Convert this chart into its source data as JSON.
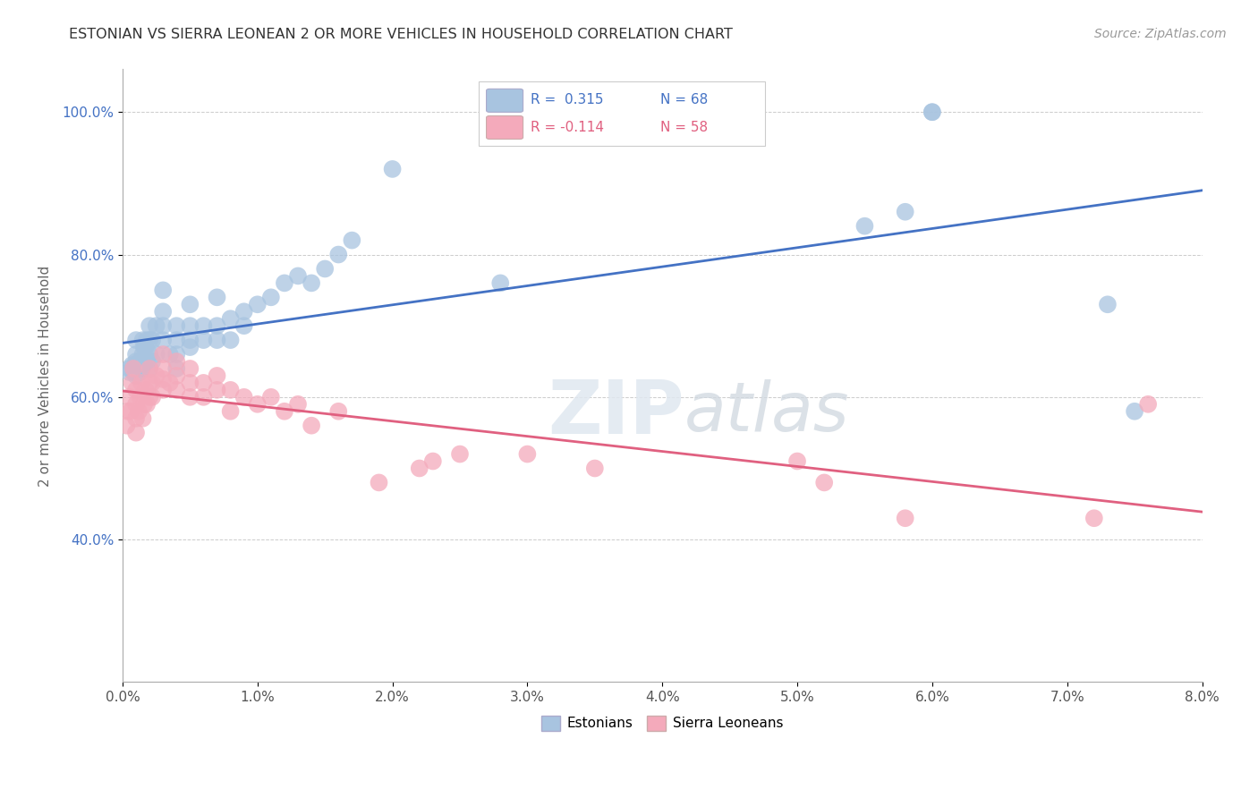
{
  "title": "ESTONIAN VS SIERRA LEONEAN 2 OR MORE VEHICLES IN HOUSEHOLD CORRELATION CHART",
  "source": "Source: ZipAtlas.com",
  "ylabel": "2 or more Vehicles in Household",
  "xlim": [
    0.0,
    0.08
  ],
  "ylim": [
    0.2,
    1.06
  ],
  "xticks": [
    0.0,
    0.01,
    0.02,
    0.03,
    0.04,
    0.05,
    0.06,
    0.07,
    0.08
  ],
  "xticklabels": [
    "0.0%",
    "1.0%",
    "2.0%",
    "3.0%",
    "4.0%",
    "5.0%",
    "6.0%",
    "7.0%",
    "8.0%"
  ],
  "yticks": [
    0.4,
    0.6,
    0.8,
    1.0
  ],
  "yticklabels": [
    "40.0%",
    "60.0%",
    "80.0%",
    "100.0%"
  ],
  "R_estonian": 0.315,
  "N_estonian": 68,
  "R_sierra": -0.114,
  "N_sierra": 58,
  "blue_color": "#A8C4E0",
  "pink_color": "#F4AABB",
  "blue_line_color": "#4472C4",
  "pink_line_color": "#E06080",
  "watermark": "ZIPatlas",
  "estonian_x": [
    0.0005,
    0.0005,
    0.0007,
    0.0008,
    0.0009,
    0.001,
    0.001,
    0.001,
    0.001,
    0.001,
    0.0012,
    0.0013,
    0.0013,
    0.0015,
    0.0015,
    0.0015,
    0.0016,
    0.0016,
    0.0017,
    0.0017,
    0.0018,
    0.0018,
    0.002,
    0.002,
    0.002,
    0.002,
    0.0022,
    0.0022,
    0.0025,
    0.0025,
    0.003,
    0.003,
    0.003,
    0.003,
    0.0035,
    0.004,
    0.004,
    0.004,
    0.004,
    0.005,
    0.005,
    0.005,
    0.005,
    0.006,
    0.006,
    0.007,
    0.007,
    0.007,
    0.008,
    0.008,
    0.009,
    0.009,
    0.01,
    0.011,
    0.012,
    0.013,
    0.014,
    0.015,
    0.016,
    0.017,
    0.02,
    0.028,
    0.055,
    0.058,
    0.06,
    0.06,
    0.073,
    0.075
  ],
  "estonian_y": [
    0.635,
    0.64,
    0.645,
    0.635,
    0.64,
    0.63,
    0.64,
    0.65,
    0.66,
    0.68,
    0.64,
    0.635,
    0.65,
    0.64,
    0.66,
    0.68,
    0.65,
    0.67,
    0.65,
    0.67,
    0.65,
    0.68,
    0.64,
    0.66,
    0.68,
    0.7,
    0.65,
    0.68,
    0.66,
    0.7,
    0.68,
    0.7,
    0.72,
    0.75,
    0.66,
    0.64,
    0.66,
    0.68,
    0.7,
    0.67,
    0.68,
    0.7,
    0.73,
    0.68,
    0.7,
    0.68,
    0.7,
    0.74,
    0.68,
    0.71,
    0.7,
    0.72,
    0.73,
    0.74,
    0.76,
    0.77,
    0.76,
    0.78,
    0.8,
    0.82,
    0.92,
    0.76,
    0.84,
    0.86,
    1.0,
    1.0,
    0.73,
    0.58
  ],
  "sierra_x": [
    0.0003,
    0.0004,
    0.0005,
    0.0006,
    0.0007,
    0.0008,
    0.001,
    0.001,
    0.001,
    0.001,
    0.0012,
    0.0013,
    0.0014,
    0.0015,
    0.0016,
    0.0017,
    0.0018,
    0.002,
    0.002,
    0.002,
    0.0022,
    0.0022,
    0.0025,
    0.003,
    0.003,
    0.003,
    0.003,
    0.0035,
    0.004,
    0.004,
    0.004,
    0.005,
    0.005,
    0.005,
    0.006,
    0.006,
    0.007,
    0.007,
    0.008,
    0.008,
    0.009,
    0.01,
    0.011,
    0.012,
    0.013,
    0.014,
    0.016,
    0.019,
    0.022,
    0.023,
    0.025,
    0.03,
    0.035,
    0.05,
    0.052,
    0.058,
    0.072,
    0.076
  ],
  "sierra_y": [
    0.56,
    0.58,
    0.6,
    0.58,
    0.62,
    0.64,
    0.55,
    0.57,
    0.59,
    0.61,
    0.58,
    0.6,
    0.62,
    0.57,
    0.59,
    0.61,
    0.59,
    0.6,
    0.62,
    0.64,
    0.6,
    0.62,
    0.63,
    0.61,
    0.625,
    0.64,
    0.66,
    0.62,
    0.61,
    0.63,
    0.65,
    0.6,
    0.62,
    0.64,
    0.6,
    0.62,
    0.61,
    0.63,
    0.58,
    0.61,
    0.6,
    0.59,
    0.6,
    0.58,
    0.59,
    0.56,
    0.58,
    0.48,
    0.5,
    0.51,
    0.52,
    0.52,
    0.5,
    0.51,
    0.48,
    0.43,
    0.43,
    0.59
  ]
}
